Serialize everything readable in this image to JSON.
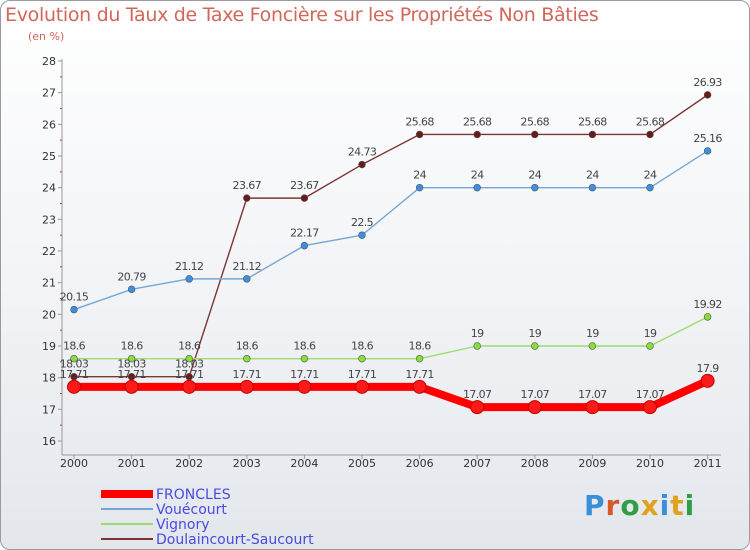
{
  "header": {
    "title": "Evolution du Taux de Taxe Foncière sur les Propriétés Non Bâties",
    "unit": "(en %)"
  },
  "logo": {
    "text": "Proxiti"
  },
  "chart_data": {
    "type": "line",
    "title": "Evolution du Taux de Taxe Foncière sur les Propriétés Non Bâties",
    "ylabel": "(en %)",
    "xlabel": "",
    "ylim": [
      16,
      28
    ],
    "y_ticks": [
      16,
      17,
      18,
      19,
      20,
      21,
      22,
      23,
      24,
      25,
      26,
      27,
      28
    ],
    "categories": [
      "2000",
      "2001",
      "2002",
      "2003",
      "2004",
      "2005",
      "2006",
      "2007",
      "2008",
      "2009",
      "2010",
      "2011"
    ],
    "legend_position": "bottom-left",
    "grid": false,
    "series": [
      {
        "name": "FRONCLES",
        "color": "#ff0000",
        "marker_fill": "#ff1a1a",
        "values": [
          17.71,
          17.71,
          17.71,
          17.71,
          17.71,
          17.71,
          17.71,
          17.07,
          17.07,
          17.07,
          17.07,
          17.9
        ],
        "labels": [
          "17.71",
          "17.71",
          "17.71",
          "17.71",
          "17.71",
          "17.71",
          "17.71",
          "17.07",
          "17.07",
          "17.07",
          "17.07",
          "17.9"
        ]
      },
      {
        "name": "Vouécourt",
        "color": "#76a6d6",
        "marker_fill": "#3c8fe3",
        "values": [
          20.15,
          20.79,
          21.12,
          21.12,
          22.17,
          22.5,
          24,
          24,
          24,
          24,
          24,
          25.16
        ],
        "labels": [
          "20.15",
          "20.79",
          "21.12",
          "21.12",
          "22.17",
          "22.5",
          "24",
          "24",
          "24",
          "24",
          "24",
          "25.16"
        ]
      },
      {
        "name": "Vignory",
        "color": "#9bdc6a",
        "marker_fill": "#86e03a",
        "values": [
          18.6,
          18.6,
          18.6,
          18.6,
          18.6,
          18.6,
          18.6,
          19,
          19,
          19,
          19,
          19.92
        ],
        "labels": [
          "18.6",
          "18.6",
          "18.6",
          "18.6",
          "18.6",
          "18.6",
          "18.6",
          "19",
          "19",
          "19",
          "19",
          "19.92"
        ]
      },
      {
        "name": "Doulaincourt-Saucourt",
        "color": "#7b3535",
        "marker_fill": "#6b1a1a",
        "values": [
          18.03,
          18.03,
          18.03,
          23.67,
          23.67,
          24.73,
          25.68,
          25.68,
          25.68,
          25.68,
          25.68,
          26.93
        ],
        "labels": [
          "18.03",
          "18.03",
          "18.03",
          "23.67",
          "23.67",
          "24.73",
          "25.68",
          "25.68",
          "25.68",
          "25.68",
          "25.68",
          "26.93"
        ]
      }
    ]
  }
}
